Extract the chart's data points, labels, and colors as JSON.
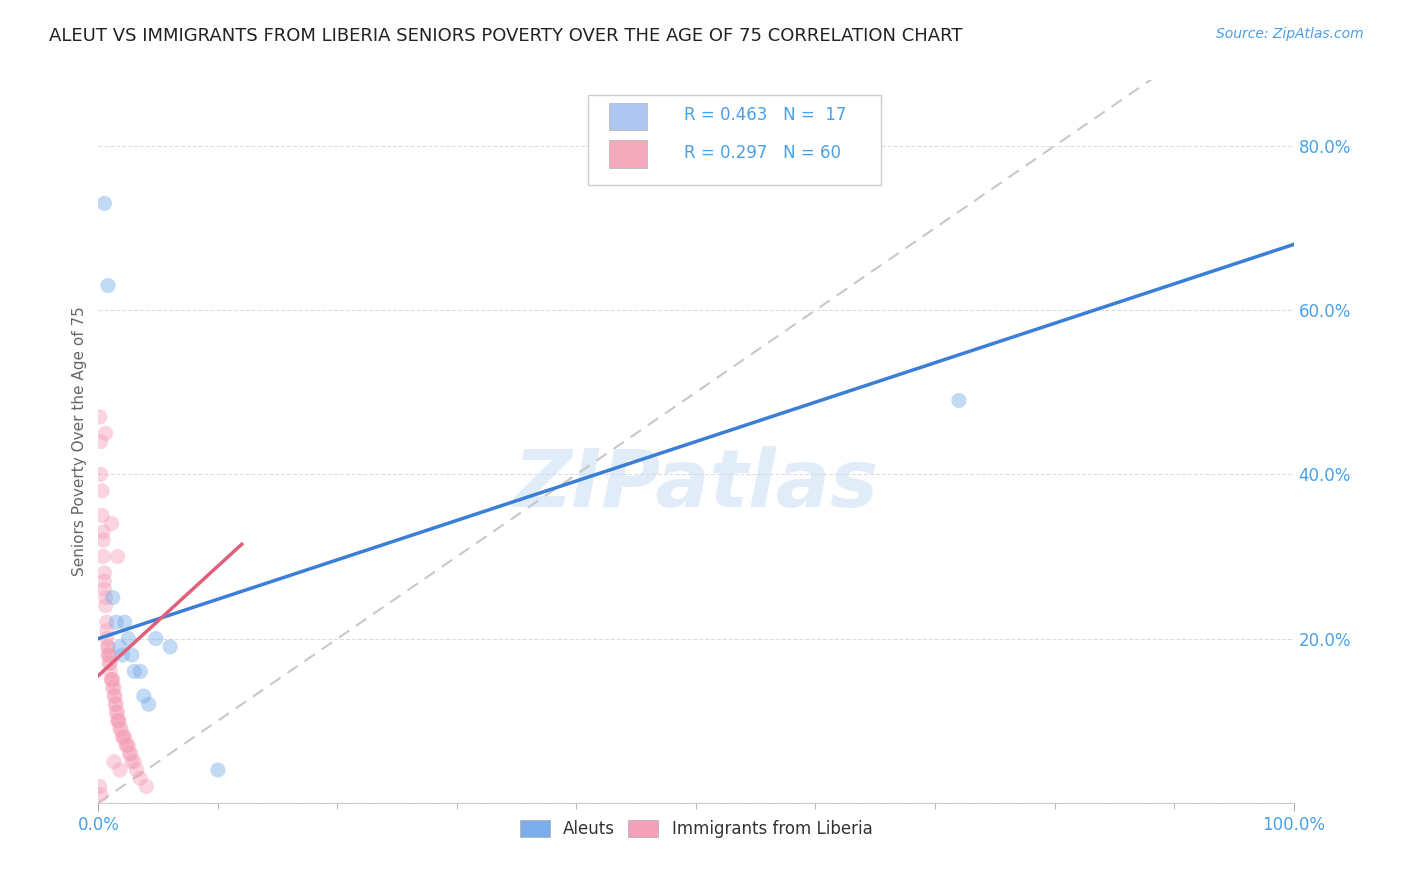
{
  "title": "ALEUT VS IMMIGRANTS FROM LIBERIA SENIORS POVERTY OVER THE AGE OF 75 CORRELATION CHART",
  "source_text": "Source: ZipAtlas.com",
  "ylabel": "Seniors Poverty Over the Age of 75",
  "watermark": "ZIPatlas",
  "legend_entries": [
    {
      "label": "R = 0.463   N =  17",
      "color": "#aec6f0"
    },
    {
      "label": "R = 0.297   N = 60",
      "color": "#f4aabc"
    }
  ],
  "bottom_legend": [
    "Aleuts",
    "Immigrants from Liberia"
  ],
  "aleut_color": "#7aadea",
  "liberia_color": "#f4a0b8",
  "aleut_trend_color": "#3a7fd5",
  "liberia_trend_color": "#e0607a",
  "ref_line_color": "#c8c8c8",
  "background_color": "#ffffff",
  "grid_color": "#dddddd",
  "title_color": "#222222",
  "axis_tick_color": "#4aa0e8",
  "ylabel_color": "#666666",
  "aleut_points": [
    [
      0.005,
      0.73
    ],
    [
      0.008,
      0.63
    ],
    [
      0.012,
      0.25
    ],
    [
      0.015,
      0.22
    ],
    [
      0.018,
      0.19
    ],
    [
      0.02,
      0.18
    ],
    [
      0.022,
      0.22
    ],
    [
      0.025,
      0.2
    ],
    [
      0.028,
      0.18
    ],
    [
      0.03,
      0.16
    ],
    [
      0.035,
      0.16
    ],
    [
      0.038,
      0.13
    ],
    [
      0.042,
      0.12
    ],
    [
      0.048,
      0.2
    ],
    [
      0.72,
      0.49
    ],
    [
      0.1,
      0.04
    ],
    [
      0.06,
      0.19
    ]
  ],
  "liberia_points": [
    [
      0.001,
      0.47
    ],
    [
      0.002,
      0.44
    ],
    [
      0.002,
      0.4
    ],
    [
      0.003,
      0.38
    ],
    [
      0.003,
      0.35
    ],
    [
      0.004,
      0.33
    ],
    [
      0.004,
      0.32
    ],
    [
      0.004,
      0.3
    ],
    [
      0.005,
      0.28
    ],
    [
      0.005,
      0.27
    ],
    [
      0.005,
      0.26
    ],
    [
      0.006,
      0.25
    ],
    [
      0.006,
      0.45
    ],
    [
      0.006,
      0.24
    ],
    [
      0.007,
      0.22
    ],
    [
      0.007,
      0.21
    ],
    [
      0.007,
      0.2
    ],
    [
      0.008,
      0.19
    ],
    [
      0.008,
      0.19
    ],
    [
      0.008,
      0.18
    ],
    [
      0.009,
      0.18
    ],
    [
      0.009,
      0.18
    ],
    [
      0.009,
      0.17
    ],
    [
      0.01,
      0.17
    ],
    [
      0.01,
      0.16
    ],
    [
      0.011,
      0.34
    ],
    [
      0.011,
      0.15
    ],
    [
      0.011,
      0.15
    ],
    [
      0.012,
      0.15
    ],
    [
      0.012,
      0.14
    ],
    [
      0.013,
      0.14
    ],
    [
      0.013,
      0.13
    ],
    [
      0.014,
      0.13
    ],
    [
      0.014,
      0.12
    ],
    [
      0.015,
      0.12
    ],
    [
      0.015,
      0.11
    ],
    [
      0.016,
      0.11
    ],
    [
      0.016,
      0.1
    ],
    [
      0.017,
      0.1
    ],
    [
      0.017,
      0.1
    ],
    [
      0.018,
      0.09
    ],
    [
      0.019,
      0.09
    ],
    [
      0.02,
      0.08
    ],
    [
      0.021,
      0.08
    ],
    [
      0.022,
      0.08
    ],
    [
      0.023,
      0.07
    ],
    [
      0.024,
      0.07
    ],
    [
      0.025,
      0.07
    ],
    [
      0.026,
      0.06
    ],
    [
      0.027,
      0.06
    ],
    [
      0.028,
      0.05
    ],
    [
      0.03,
      0.05
    ],
    [
      0.032,
      0.04
    ],
    [
      0.001,
      0.02
    ],
    [
      0.035,
      0.03
    ],
    [
      0.002,
      0.01
    ],
    [
      0.016,
      0.3
    ],
    [
      0.013,
      0.05
    ],
    [
      0.018,
      0.04
    ],
    [
      0.04,
      0.02
    ]
  ],
  "xlim": [
    0,
    1.0
  ],
  "ylim": [
    0,
    0.88
  ],
  "xticks_major": [
    0.0,
    1.0
  ],
  "xticks_minor": [
    0.1,
    0.2,
    0.3,
    0.4,
    0.5,
    0.6,
    0.7,
    0.8,
    0.9
  ],
  "xticklabels_major": [
    "0.0%",
    "100.0%"
  ],
  "yticks": [
    0.0,
    0.2,
    0.4,
    0.6,
    0.8
  ],
  "yticklabels": [
    "",
    "20.0%",
    "40.0%",
    "60.0%",
    "80.0%"
  ],
  "marker_size": 120,
  "marker_alpha": 0.45,
  "title_fontsize": 13,
  "axis_label_fontsize": 11,
  "tick_fontsize": 12,
  "legend_fontsize": 12,
  "source_fontsize": 10
}
